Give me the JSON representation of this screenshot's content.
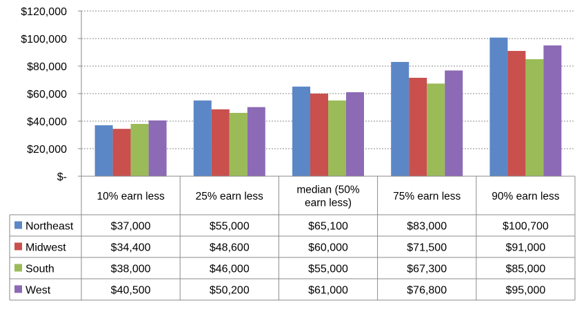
{
  "chart_data": {
    "type": "bar",
    "title": "",
    "xlabel": "",
    "ylabel": "",
    "categories": [
      [
        "10% earn less"
      ],
      [
        "25% earn less"
      ],
      [
        "median (50%",
        "earn less)"
      ],
      [
        "75% earn less"
      ],
      [
        "90% earn less"
      ]
    ],
    "series": [
      {
        "name": "Northeast",
        "color": "#5b87c6",
        "values": [
          37000,
          55000,
          65100,
          83000,
          100700
        ],
        "labels": [
          "$37,000",
          "$55,000",
          "$65,100",
          "$83,000",
          "$100,700"
        ]
      },
      {
        "name": "Midwest",
        "color": "#c9504d",
        "values": [
          34400,
          48600,
          60000,
          71500,
          91000
        ],
        "labels": [
          "$34,400",
          "$48,600",
          "$60,000",
          "$71,500",
          "$91,000"
        ]
      },
      {
        "name": "South",
        "color": "#9bbb59",
        "values": [
          38000,
          46000,
          55000,
          67300,
          85000
        ],
        "labels": [
          "$38,000",
          "$46,000",
          "$55,000",
          "$67,300",
          "$85,000"
        ]
      },
      {
        "name": "West",
        "color": "#8c6ab5",
        "values": [
          40500,
          50200,
          61000,
          76800,
          95000
        ],
        "labels": [
          "$40,500",
          "$50,200",
          "$61,000",
          "$76,800",
          "$95,000"
        ]
      }
    ],
    "ylim": [
      0,
      120000
    ],
    "yticks": [
      {
        "value": 0,
        "label": "$-"
      },
      {
        "value": 20000,
        "label": "$20,000"
      },
      {
        "value": 40000,
        "label": "$40,000"
      },
      {
        "value": 60000,
        "label": "$60,000"
      },
      {
        "value": 80000,
        "label": "$80,000"
      },
      {
        "value": 100000,
        "label": "$100,000"
      },
      {
        "value": 120000,
        "label": "$120,000"
      }
    ],
    "grid": true,
    "legend": "data-table"
  }
}
